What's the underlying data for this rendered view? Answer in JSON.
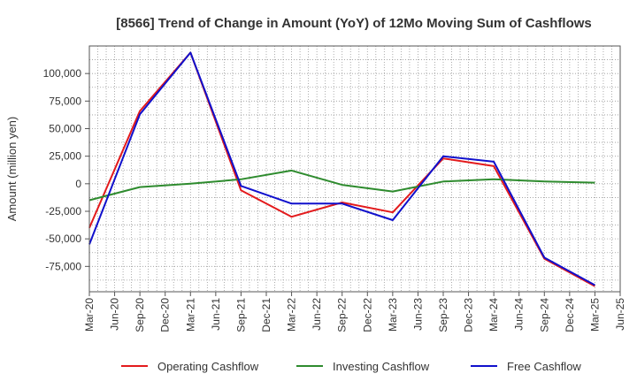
{
  "chart_data": {
    "type": "line",
    "title": "[8566]  Trend of Change in Amount (YoY) of 12Mo Moving Sum of Cashflows",
    "xlabel": "",
    "ylabel": "Amount (million yen)",
    "ylim": [
      -98000,
      125000
    ],
    "yticks": [
      100000,
      75000,
      50000,
      25000,
      0,
      -25000,
      -50000,
      -75000
    ],
    "ytick_labels": [
      "100,000",
      "75,000",
      "50,000",
      "25,000",
      "0",
      "-25,000",
      "-50,000",
      "-75,000"
    ],
    "xtick_labels": [
      "Mar-20",
      "Jun-20",
      "Sep-20",
      "Dec-20",
      "Mar-21",
      "Jun-21",
      "Sep-21",
      "Dec-21",
      "Mar-22",
      "Jun-22",
      "Sep-22",
      "Dec-22",
      "Mar-23",
      "Jun-23",
      "Sep-23",
      "Dec-23",
      "Mar-24",
      "Jun-24",
      "Sep-24",
      "Dec-24",
      "Mar-25",
      "Jun-25"
    ],
    "grid": true,
    "legend_position": "bottom",
    "series": [
      {
        "name": "Operating Cashflow",
        "color": "#e31a1c",
        "x": [
          "Mar-20",
          "Sep-20",
          "Mar-21",
          "Sep-21",
          "Mar-22",
          "Sep-22",
          "Mar-23",
          "Sep-23",
          "Mar-24",
          "Sep-24",
          "Mar-25"
        ],
        "values": [
          -40000,
          66000,
          119000,
          -6000,
          -30000,
          -17000,
          -26000,
          23000,
          16000,
          -68000,
          -93000
        ]
      },
      {
        "name": "Investing Cashflow",
        "color": "#2e8b2e",
        "x": [
          "Mar-20",
          "Sep-20",
          "Mar-21",
          "Sep-21",
          "Mar-22",
          "Sep-22",
          "Mar-23",
          "Sep-23",
          "Mar-24",
          "Sep-24",
          "Mar-25"
        ],
        "values": [
          -15000,
          -3000,
          0,
          4000,
          12000,
          -1000,
          -7000,
          2000,
          4000,
          2000,
          1000
        ]
      },
      {
        "name": "Free Cashflow",
        "color": "#1010cc",
        "x": [
          "Mar-20",
          "Sep-20",
          "Mar-21",
          "Sep-21",
          "Mar-22",
          "Sep-22",
          "Mar-23",
          "Sep-23",
          "Mar-24",
          "Sep-24",
          "Mar-25"
        ],
        "values": [
          -55000,
          63000,
          119000,
          -2000,
          -18000,
          -18000,
          -33000,
          25000,
          20000,
          -67000,
          -92000
        ]
      }
    ]
  }
}
